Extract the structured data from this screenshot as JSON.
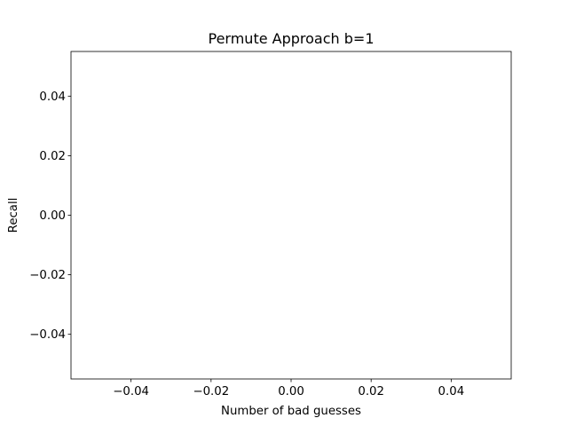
{
  "chart_data": {
    "type": "line",
    "title": "Permute Approach b=1",
    "xlabel": "Number of bad guesses",
    "ylabel": "Recall",
    "xlim": [
      -0.055,
      0.055
    ],
    "ylim": [
      -0.055,
      0.055
    ],
    "x_ticks": [
      -0.04,
      -0.02,
      0.0,
      0.02,
      0.04
    ],
    "x_tick_labels": [
      "−0.04",
      "−0.02",
      "0.00",
      "0.02",
      "0.04"
    ],
    "y_ticks": [
      -0.04,
      -0.02,
      0.0,
      0.02,
      0.04
    ],
    "y_tick_labels": [
      "−0.04",
      "−0.02",
      "0.00",
      "0.02",
      "0.04"
    ],
    "grid": false,
    "series": []
  }
}
